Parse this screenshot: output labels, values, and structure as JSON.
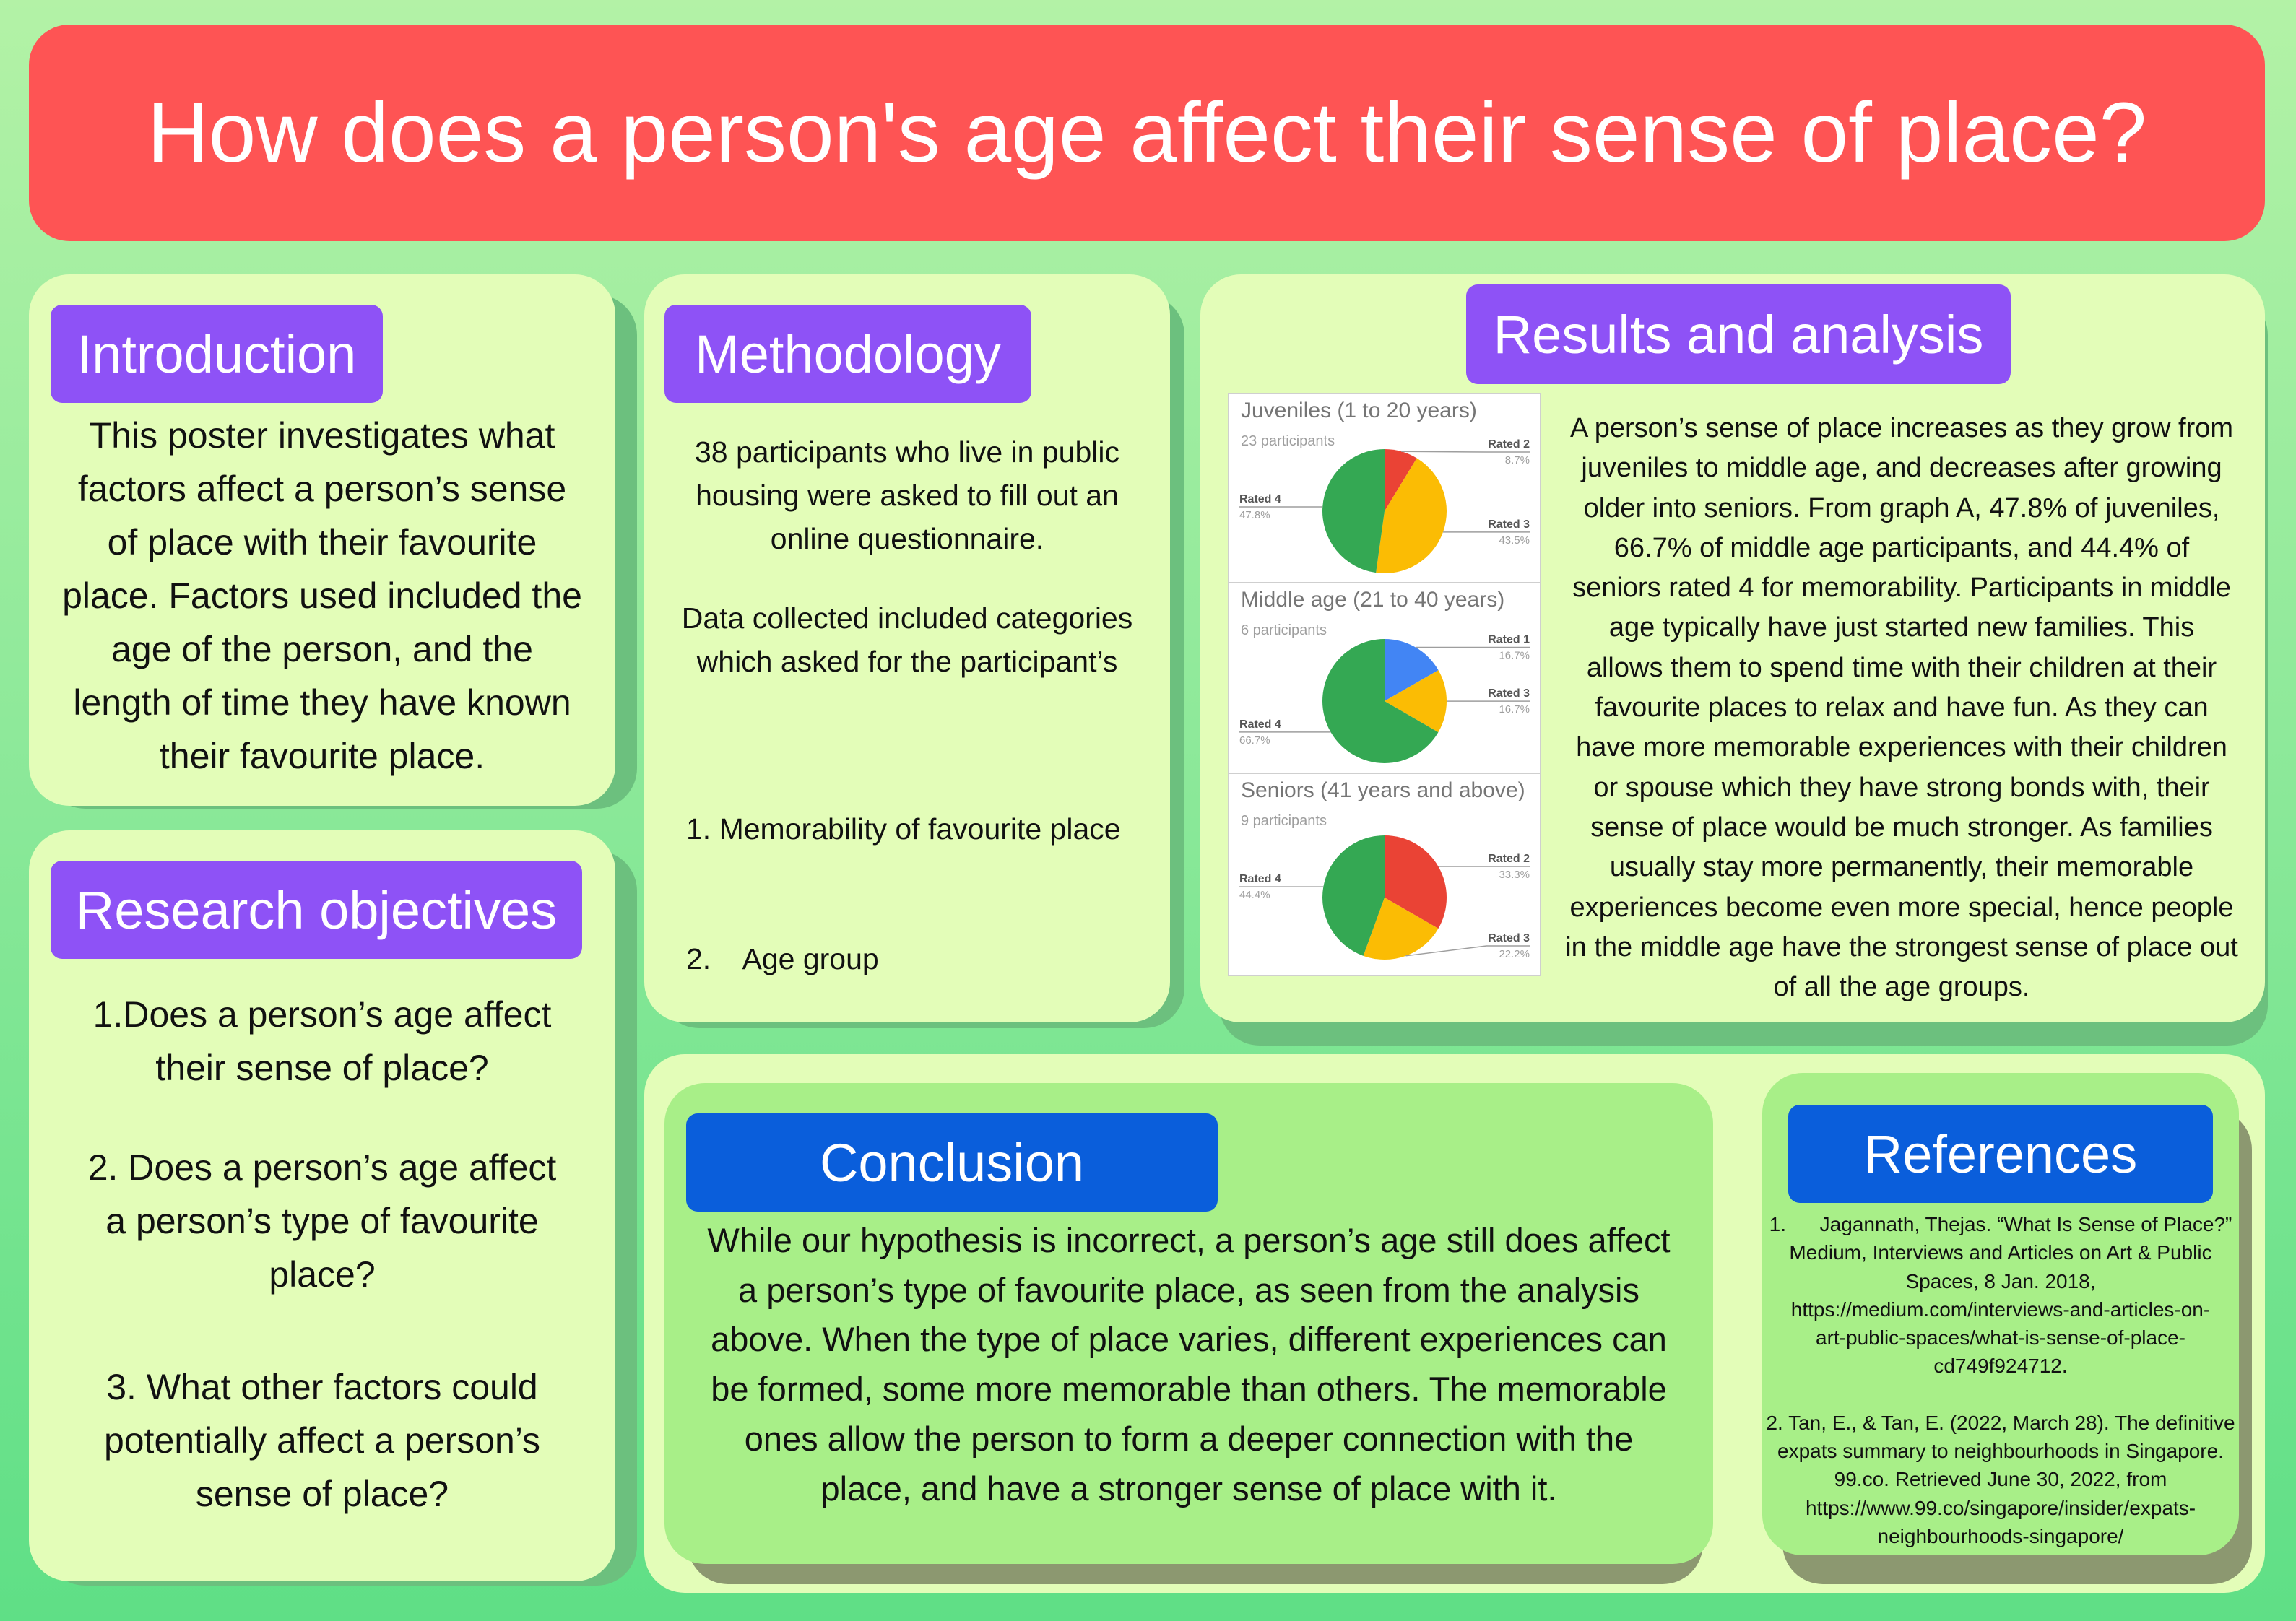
{
  "title": "How does a person's age affect their sense of place?",
  "colors": {
    "background": "#8ee99a",
    "banner": "#fe5454",
    "card": "#e3fdb8",
    "heading_purple": "#8e52f6",
    "heading_blue": "#0a5edb"
  },
  "introduction": {
    "heading": "Introduction",
    "lines": [
      "This poster investigates what",
      "factors affect a person’s sense",
      "of place with their favourite",
      "place. Factors used included the",
      "age of the person, and the",
      "length of time they have known",
      "their favourite place."
    ]
  },
  "research_objectives": {
    "heading": "Research objectives",
    "lines": [
      "1.Does a person’s age affect",
      "their sense of place?",
      "2. Does a person’s age affect",
      "a person’s type of favourite",
      "place?",
      "3. What other factors could",
      "potentially affect a person’s",
      "sense of place?"
    ]
  },
  "methodology": {
    "heading": "Methodology",
    "lines": [
      "38 participants who live in public",
      "housing were asked to fill out an",
      "online questionnaire.",
      "Data collected included categories",
      "which asked for the participant’s",
      "1. Memorability of favourite place",
      "2.    Age group"
    ]
  },
  "results": {
    "heading": "Results and analysis",
    "lines": [
      "A person’s sense of place increases as they grow from",
      "juveniles to middle age, and decreases after growing",
      "older into seniors. From graph A, 47.8% of juveniles,",
      "66.7% of middle age participants, and 44.4% of",
      "seniors rated 4 for memorability. Participants in middle",
      "age typically have just started new families. This",
      "allows them to spend time with their children at their",
      "favourite places to relax and have fun. As they can",
      "have more memorable experiences with their children",
      "or spouse which they have strong bonds with, their",
      "sense of place would be much stronger. As families",
      "usually stay more permanently, their memorable",
      "experiences become even more special, hence people",
      "in the middle age have the strongest sense of place out",
      "of all the age groups."
    ]
  },
  "chart_data": [
    {
      "type": "pie",
      "title": "Juveniles (1 to 20 years)",
      "subtitle": "23 participants",
      "slices": [
        {
          "label": "Rated 2",
          "value": 8.7,
          "display": "8.7%",
          "color": "#ea4335"
        },
        {
          "label": "Rated 3",
          "value": 43.5,
          "display": "43.5%",
          "color": "#fbbc04"
        },
        {
          "label": "Rated 4",
          "value": 47.8,
          "display": "47.8%",
          "color": "#34a853"
        }
      ]
    },
    {
      "type": "pie",
      "title": "Middle age (21 to 40 years)",
      "subtitle": "6 participants",
      "slices": [
        {
          "label": "Rated 1",
          "value": 16.7,
          "display": "16.7%",
          "color": "#4285f4"
        },
        {
          "label": "Rated 3",
          "value": 16.7,
          "display": "16.7%",
          "color": "#fbbc04"
        },
        {
          "label": "Rated 4",
          "value": 66.7,
          "display": "66.7%",
          "color": "#34a853"
        }
      ]
    },
    {
      "type": "pie",
      "title": "Seniors (41 years and above)",
      "subtitle": "9 participants",
      "slices": [
        {
          "label": "Rated 2",
          "value": 33.3,
          "display": "33.3%",
          "color": "#ea4335"
        },
        {
          "label": "Rated 3",
          "value": 22.2,
          "display": "22.2%",
          "color": "#fbbc04"
        },
        {
          "label": "Rated 4",
          "value": 44.4,
          "display": "44.4%",
          "color": "#34a853"
        }
      ]
    }
  ],
  "conclusion": {
    "heading": "Conclusion",
    "lines": [
      "While our hypothesis is incorrect, a person’s age still does affect",
      "a person’s type of favourite place, as seen from the analysis",
      "above. When the type of place varies, different experiences can",
      "be formed, some more memorable than others. The memorable",
      "ones allow the person to form a deeper connection with the",
      "place, and have a stronger sense of place with it."
    ]
  },
  "references": {
    "heading": "References",
    "lines": [
      "1.      Jagannath, Thejas. “What Is Sense of Place?”",
      "Medium, Interviews and Articles on Art & Public",
      "Spaces, 8 Jan. 2018,",
      "https://medium.com/interviews-and-articles-on-",
      "art-public-spaces/what-is-sense-of-place-",
      "cd749f924712.",
      "2. Tan, E., & Tan, E. (2022, March 28). The definitive",
      "expats summary to neighbourhoods in Singapore.",
      "99.co. Retrieved June 30, 2022, from",
      "https://www.99.co/singapore/insider/expats-",
      "neighbourhoods-singapore/"
    ]
  }
}
